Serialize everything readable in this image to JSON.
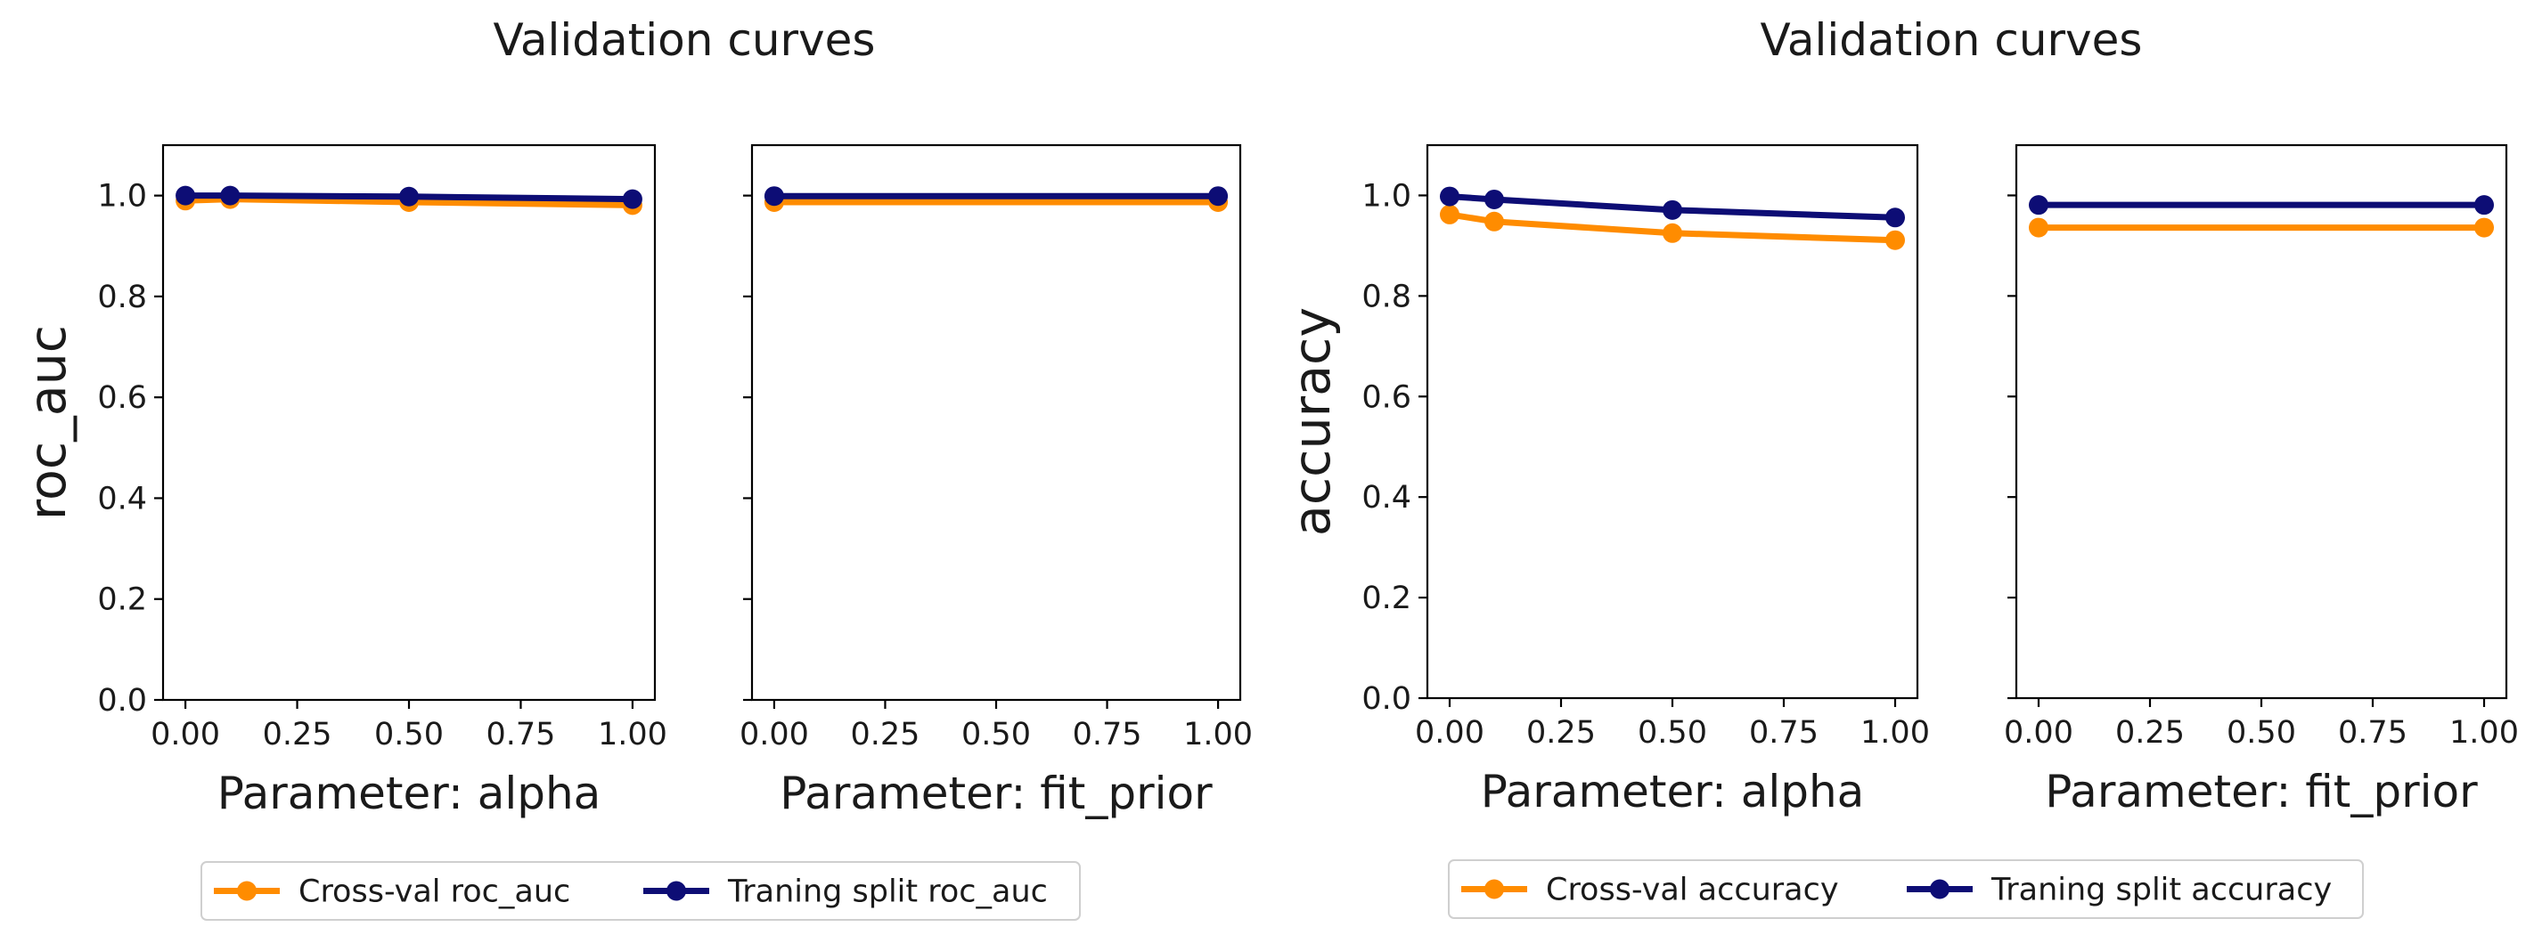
{
  "colors": {
    "cross_val": "#ff8c00",
    "training": "#0d0d75"
  },
  "figures": [
    {
      "title": "Validation curves",
      "legend": [
        "Cross-val roc_auc",
        "Traning split roc_auc"
      ]
    },
    {
      "title": "Validation curves",
      "legend": [
        "Cross-val accuracy",
        "Traning split accuracy"
      ]
    }
  ],
  "chart_data": [
    {
      "type": "line",
      "title": "Validation curves",
      "xlabel": "Parameter: alpha",
      "ylabel": "roc_auc",
      "xlim": [
        -0.05,
        1.05
      ],
      "ylim": [
        0,
        1.1
      ],
      "xticks": [
        "0.00",
        "0.25",
        "0.50",
        "0.75",
        "1.00"
      ],
      "yticks": [
        "0.0",
        "0.2",
        "0.4",
        "0.6",
        "0.8",
        "1.0"
      ],
      "x": [
        0,
        0.1,
        0.5,
        1.0
      ],
      "series": [
        {
          "name": "Cross-val roc_auc",
          "color": "#ff8c00",
          "values": [
            0.99,
            0.993,
            0.987,
            0.981
          ]
        },
        {
          "name": "Traning split roc_auc",
          "color": "#0d0d75",
          "values": [
            1.0,
            1.0,
            0.998,
            0.993
          ]
        }
      ]
    },
    {
      "type": "line",
      "title": "Validation curves",
      "xlabel": "Parameter: fit_prior",
      "ylabel": "",
      "xlim": [
        -0.05,
        1.05
      ],
      "ylim": [
        0,
        1.1
      ],
      "xticks": [
        "0.00",
        "0.25",
        "0.50",
        "0.75",
        "1.00"
      ],
      "yticks": [],
      "x": [
        0,
        1.0
      ],
      "series": [
        {
          "name": "Cross-val roc_auc",
          "color": "#ff8c00",
          "values": [
            0.987,
            0.987
          ]
        },
        {
          "name": "Traning split roc_auc",
          "color": "#0d0d75",
          "values": [
            0.999,
            0.999
          ]
        }
      ]
    },
    {
      "type": "line",
      "title": "Validation curves",
      "xlabel": "Parameter: alpha",
      "ylabel": "accuracy",
      "xlim": [
        -0.05,
        1.05
      ],
      "ylim": [
        0,
        1.1
      ],
      "xticks": [
        "0.00",
        "0.25",
        "0.50",
        "0.75",
        "1.00"
      ],
      "yticks": [
        "0.0",
        "0.2",
        "0.4",
        "0.6",
        "0.8",
        "1.0"
      ],
      "x": [
        0,
        0.1,
        0.5,
        1.0
      ],
      "series": [
        {
          "name": "Cross-val accuracy",
          "color": "#ff8c00",
          "values": [
            0.962,
            0.948,
            0.925,
            0.911
          ]
        },
        {
          "name": "Traning split accuracy",
          "color": "#0d0d75",
          "values": [
            0.998,
            0.992,
            0.971,
            0.956
          ]
        }
      ]
    },
    {
      "type": "line",
      "title": "Validation curves",
      "xlabel": "Parameter: fit_prior",
      "ylabel": "",
      "xlim": [
        -0.05,
        1.05
      ],
      "ylim": [
        0,
        1.1
      ],
      "xticks": [
        "0.00",
        "0.25",
        "0.50",
        "0.75",
        "1.00"
      ],
      "yticks": [],
      "x": [
        0,
        1.0
      ],
      "series": [
        {
          "name": "Cross-val accuracy",
          "color": "#ff8c00",
          "values": [
            0.936,
            0.936
          ]
        },
        {
          "name": "Traning split accuracy",
          "color": "#0d0d75",
          "values": [
            0.981,
            0.981
          ]
        }
      ]
    }
  ]
}
